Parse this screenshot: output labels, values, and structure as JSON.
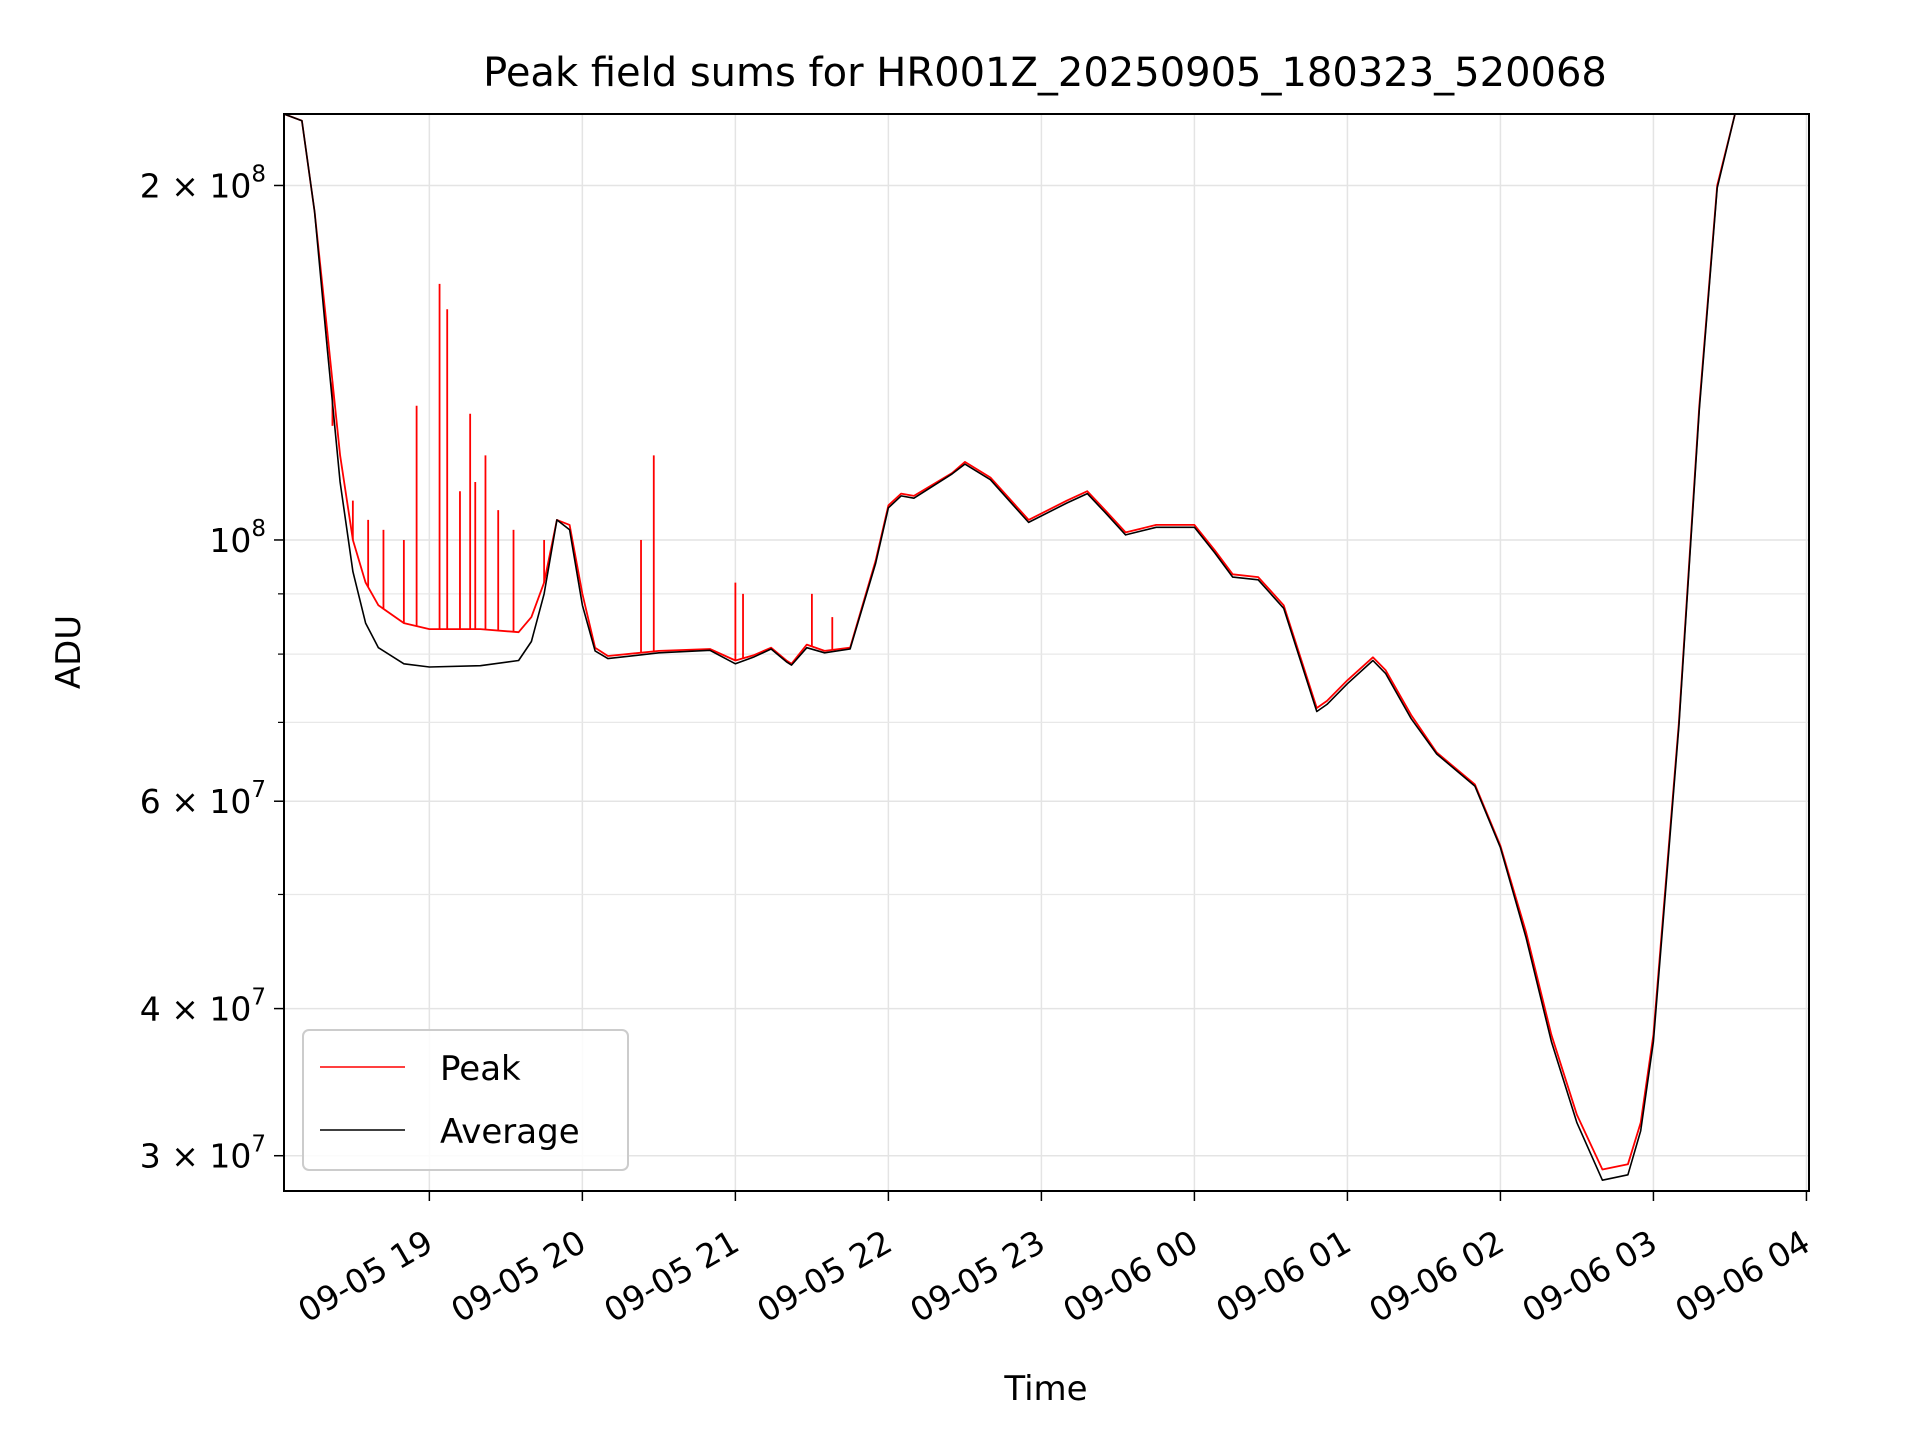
{
  "chart_data": {
    "type": "line",
    "title": "Peak field sums for HR001Z_20250905_180323_520068",
    "xlabel": "Time",
    "ylabel": "ADU",
    "y_scale": "log",
    "grid": true,
    "legend_position": "bottom-left",
    "xlim": [
      "2025-09-05 18:03",
      "2025-09-06 04:01"
    ],
    "ylim": [
      28000000,
      230000000
    ],
    "x_ticks": [
      {
        "value": "2025-09-05 19:00",
        "label": "09-05 19"
      },
      {
        "value": "2025-09-05 20:00",
        "label": "09-05 20"
      },
      {
        "value": "2025-09-05 21:00",
        "label": "09-05 21"
      },
      {
        "value": "2025-09-05 22:00",
        "label": "09-05 22"
      },
      {
        "value": "2025-09-05 23:00",
        "label": "09-05 23"
      },
      {
        "value": "2025-09-06 00:00",
        "label": "09-06 00"
      },
      {
        "value": "2025-09-06 01:00",
        "label": "09-06 01"
      },
      {
        "value": "2025-09-06 02:00",
        "label": "09-06 02"
      },
      {
        "value": "2025-09-06 03:00",
        "label": "09-06 03"
      },
      {
        "value": "2025-09-06 04:00",
        "label": "09-06 04"
      }
    ],
    "y_ticks": [
      {
        "value": 30000000,
        "mant": "3 × 10",
        "exp": "7"
      },
      {
        "value": 40000000,
        "mant": "4 × 10",
        "exp": "7"
      },
      {
        "value": 60000000,
        "mant": "6 × 10",
        "exp": "7"
      },
      {
        "value": 100000000,
        "mant": "10",
        "exp": "8"
      },
      {
        "value": 200000000,
        "mant": "2 × 10",
        "exp": "8"
      }
    ],
    "y_minor_ticks": [
      50000000,
      70000000,
      80000000,
      90000000
    ],
    "series": [
      {
        "name": "Peak",
        "color": "#ff0000",
        "points": [
          [
            "2025-09-05 18:03",
            230000000
          ],
          [
            "2025-09-05 18:10",
            227000000
          ],
          [
            "2025-09-05 18:15",
            190000000
          ],
          [
            "2025-09-05 18:20",
            150000000
          ],
          [
            "2025-09-05 18:25",
            118000000
          ],
          [
            "2025-09-05 18:30",
            100000000
          ],
          [
            "2025-09-05 18:35",
            92000000
          ],
          [
            "2025-09-05 18:40",
            88000000
          ],
          [
            "2025-09-05 18:50",
            85000000
          ],
          [
            "2025-09-05 19:00",
            84000000
          ],
          [
            "2025-09-05 19:20",
            84000000
          ],
          [
            "2025-09-05 19:35",
            83500000
          ],
          [
            "2025-09-05 19:40",
            86000000
          ],
          [
            "2025-09-05 19:45",
            92000000
          ],
          [
            "2025-09-05 19:50",
            104000000
          ],
          [
            "2025-09-05 19:55",
            103000000
          ],
          [
            "2025-09-05 20:00",
            90000000
          ],
          [
            "2025-09-05 20:05",
            81000000
          ],
          [
            "2025-09-05 20:10",
            79700000
          ],
          [
            "2025-09-05 20:30",
            80500000
          ],
          [
            "2025-09-05 20:50",
            80800000
          ],
          [
            "2025-09-05 21:00",
            79000000
          ],
          [
            "2025-09-05 21:07",
            79800000
          ],
          [
            "2025-09-05 21:14",
            81000000
          ],
          [
            "2025-09-05 21:20",
            79000000
          ],
          [
            "2025-09-05 21:22",
            78500000
          ],
          [
            "2025-09-05 21:28",
            81500000
          ],
          [
            "2025-09-05 21:35",
            80500000
          ],
          [
            "2025-09-05 21:45",
            81000000
          ],
          [
            "2025-09-05 21:55",
            96000000
          ],
          [
            "2025-09-05 22:00",
            107000000
          ],
          [
            "2025-09-05 22:05",
            109500000
          ],
          [
            "2025-09-05 22:10",
            109000000
          ],
          [
            "2025-09-05 22:25",
            114000000
          ],
          [
            "2025-09-05 22:30",
            116500000
          ],
          [
            "2025-09-05 22:40",
            113000000
          ],
          [
            "2025-09-05 22:55",
            104000000
          ],
          [
            "2025-09-05 23:10",
            108000000
          ],
          [
            "2025-09-05 23:18",
            110000000
          ],
          [
            "2025-09-05 23:25",
            106000000
          ],
          [
            "2025-09-05 23:33",
            101500000
          ],
          [
            "2025-09-05 23:45",
            103000000
          ],
          [
            "2025-09-06 00:00",
            103000000
          ],
          [
            "2025-09-06 00:08",
            98000000
          ],
          [
            "2025-09-06 00:15",
            93500000
          ],
          [
            "2025-09-06 00:25",
            93000000
          ],
          [
            "2025-09-06 00:35",
            88000000
          ],
          [
            "2025-09-06 00:48",
            72000000
          ],
          [
            "2025-09-06 00:52",
            73000000
          ],
          [
            "2025-09-06 01:00",
            76000000
          ],
          [
            "2025-09-06 01:10",
            79500000
          ],
          [
            "2025-09-06 01:15",
            77500000
          ],
          [
            "2025-09-06 01:25",
            71000000
          ],
          [
            "2025-09-06 01:35",
            66000000
          ],
          [
            "2025-09-06 01:50",
            62000000
          ],
          [
            "2025-09-06 02:00",
            55000000
          ],
          [
            "2025-09-06 02:10",
            46500000
          ],
          [
            "2025-09-06 02:20",
            38000000
          ],
          [
            "2025-09-06 02:30",
            32500000
          ],
          [
            "2025-09-06 02:40",
            29200000
          ],
          [
            "2025-09-06 02:50",
            29500000
          ],
          [
            "2025-09-06 02:55",
            32000000
          ],
          [
            "2025-09-06 03:00",
            38000000
          ],
          [
            "2025-09-06 03:10",
            70000000
          ],
          [
            "2025-09-06 03:18",
            130000000
          ],
          [
            "2025-09-06 03:25",
            200000000
          ],
          [
            "2025-09-06 03:32",
            230000000
          ],
          [
            "2025-09-06 04:01",
            230000000
          ]
        ]
      },
      {
        "name": "Average",
        "color": "#000000",
        "points": [
          [
            "2025-09-05 18:03",
            230000000
          ],
          [
            "2025-09-05 18:10",
            227000000
          ],
          [
            "2025-09-05 18:15",
            190000000
          ],
          [
            "2025-09-05 18:20",
            145000000
          ],
          [
            "2025-09-05 18:25",
            112000000
          ],
          [
            "2025-09-05 18:30",
            94000000
          ],
          [
            "2025-09-05 18:35",
            85000000
          ],
          [
            "2025-09-05 18:40",
            81000000
          ],
          [
            "2025-09-05 18:50",
            78500000
          ],
          [
            "2025-09-05 19:00",
            78000000
          ],
          [
            "2025-09-05 19:20",
            78200000
          ],
          [
            "2025-09-05 19:35",
            79000000
          ],
          [
            "2025-09-05 19:40",
            82000000
          ],
          [
            "2025-09-05 19:45",
            90000000
          ],
          [
            "2025-09-05 19:50",
            104000000
          ],
          [
            "2025-09-05 19:55",
            102000000
          ],
          [
            "2025-09-05 20:00",
            88000000
          ],
          [
            "2025-09-05 20:05",
            80500000
          ],
          [
            "2025-09-05 20:10",
            79300000
          ],
          [
            "2025-09-05 20:30",
            80200000
          ],
          [
            "2025-09-05 20:50",
            80600000
          ],
          [
            "2025-09-05 21:00",
            78500000
          ],
          [
            "2025-09-05 21:07",
            79500000
          ],
          [
            "2025-09-05 21:14",
            80800000
          ],
          [
            "2025-09-05 21:20",
            78800000
          ],
          [
            "2025-09-05 21:22",
            78300000
          ],
          [
            "2025-09-05 21:28",
            81000000
          ],
          [
            "2025-09-05 21:35",
            80200000
          ],
          [
            "2025-09-05 21:45",
            80800000
          ],
          [
            "2025-09-05 21:55",
            95500000
          ],
          [
            "2025-09-05 22:00",
            106500000
          ],
          [
            "2025-09-05 22:05",
            109000000
          ],
          [
            "2025-09-05 22:10",
            108500000
          ],
          [
            "2025-09-05 22:25",
            113800000
          ],
          [
            "2025-09-05 22:30",
            116000000
          ],
          [
            "2025-09-05 22:40",
            112500000
          ],
          [
            "2025-09-05 22:55",
            103500000
          ],
          [
            "2025-09-05 23:10",
            107500000
          ],
          [
            "2025-09-05 23:18",
            109500000
          ],
          [
            "2025-09-05 23:25",
            105500000
          ],
          [
            "2025-09-05 23:33",
            101000000
          ],
          [
            "2025-09-05 23:45",
            102500000
          ],
          [
            "2025-09-06 00:00",
            102500000
          ],
          [
            "2025-09-06 00:08",
            97500000
          ],
          [
            "2025-09-06 00:15",
            93000000
          ],
          [
            "2025-09-06 00:25",
            92500000
          ],
          [
            "2025-09-06 00:35",
            87500000
          ],
          [
            "2025-09-06 00:48",
            71500000
          ],
          [
            "2025-09-06 00:52",
            72500000
          ],
          [
            "2025-09-06 01:00",
            75500000
          ],
          [
            "2025-09-06 01:10",
            79000000
          ],
          [
            "2025-09-06 01:15",
            77000000
          ],
          [
            "2025-09-06 01:25",
            70500000
          ],
          [
            "2025-09-06 01:35",
            65800000
          ],
          [
            "2025-09-06 01:50",
            61800000
          ],
          [
            "2025-09-06 02:00",
            54800000
          ],
          [
            "2025-09-06 02:10",
            46000000
          ],
          [
            "2025-09-06 02:20",
            37500000
          ],
          [
            "2025-09-06 02:30",
            32000000
          ],
          [
            "2025-09-06 02:40",
            28600000
          ],
          [
            "2025-09-06 02:50",
            28900000
          ],
          [
            "2025-09-06 02:55",
            31500000
          ],
          [
            "2025-09-06 03:00",
            37500000
          ],
          [
            "2025-09-06 03:10",
            69500000
          ],
          [
            "2025-09-06 03:18",
            129000000
          ],
          [
            "2025-09-06 03:25",
            199000000
          ],
          [
            "2025-09-06 03:32",
            230000000
          ],
          [
            "2025-09-06 04:01",
            230000000
          ]
        ]
      }
    ],
    "peak_spikes": [
      [
        "2025-09-05 18:22",
        125000000
      ],
      [
        "2025-09-05 18:30",
        108000000
      ],
      [
        "2025-09-05 18:36",
        104000000
      ],
      [
        "2025-09-05 18:42",
        102000000
      ],
      [
        "2025-09-05 18:50",
        100000000
      ],
      [
        "2025-09-05 18:55",
        130000000
      ],
      [
        "2025-09-05 19:04",
        165000000
      ],
      [
        "2025-09-05 19:07",
        157000000
      ],
      [
        "2025-09-05 19:12",
        110000000
      ],
      [
        "2025-09-05 19:16",
        128000000
      ],
      [
        "2025-09-05 19:18",
        112000000
      ],
      [
        "2025-09-05 19:22",
        118000000
      ],
      [
        "2025-09-05 19:27",
        106000000
      ],
      [
        "2025-09-05 19:33",
        102000000
      ],
      [
        "2025-09-05 19:45",
        100000000
      ],
      [
        "2025-09-05 20:23",
        100000000
      ],
      [
        "2025-09-05 20:28",
        118000000
      ],
      [
        "2025-09-05 21:00",
        92000000
      ],
      [
        "2025-09-05 21:03",
        90000000
      ],
      [
        "2025-09-05 21:30",
        90000000
      ],
      [
        "2025-09-05 21:38",
        86000000
      ]
    ]
  }
}
